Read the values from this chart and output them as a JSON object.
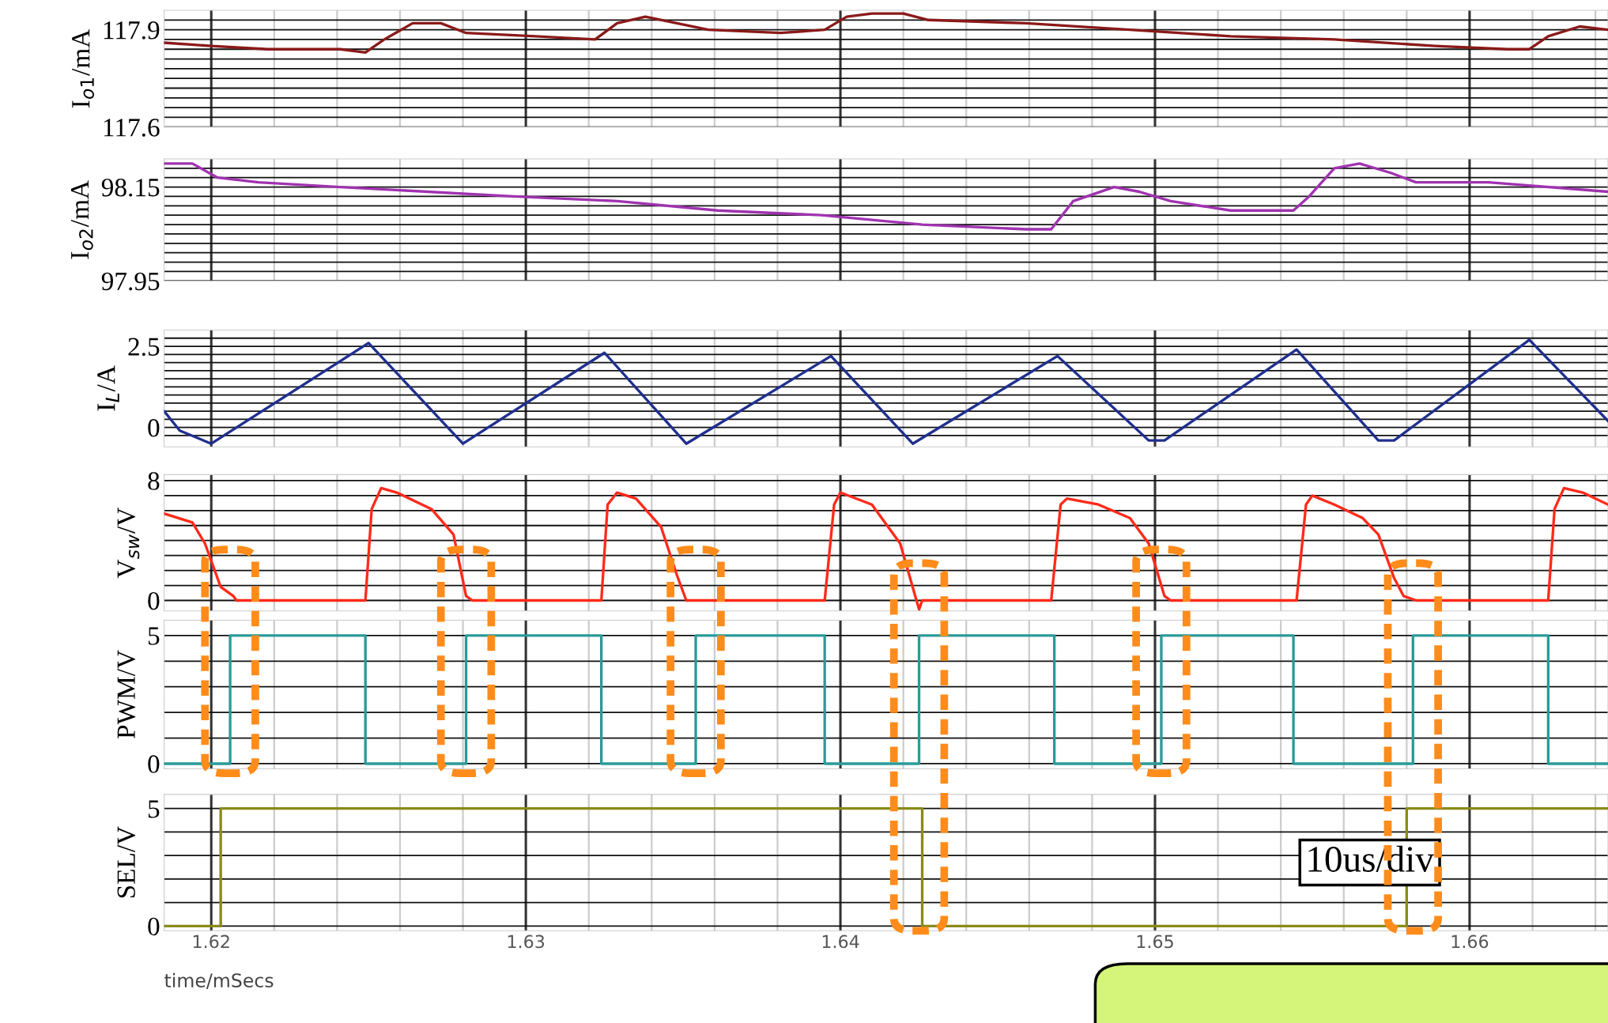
{
  "chart_data": [
    {
      "type": "line",
      "ylabel": "I$_{o1}$/mA",
      "ylim": [
        117.6,
        117.96
      ],
      "yticks": [
        117.6,
        {
          "value": 117.63,
          "label": null
        },
        {
          "value": 117.66,
          "label": null
        },
        {
          "value": 117.69,
          "label": null
        },
        {
          "value": 117.72,
          "label": null
        },
        {
          "value": 117.75,
          "label": null
        },
        {
          "value": 117.78,
          "label": null
        },
        {
          "value": 117.81,
          "label": null
        },
        {
          "value": 117.84,
          "label": null
        },
        {
          "value": 117.87,
          "label": null
        },
        117.9,
        {
          "value": 117.93,
          "label": null
        }
      ],
      "xlim": [
        1.6185,
        1.6644
      ],
      "tick_labels": "y",
      "grid": true,
      "series": [
        {
          "color": "#8b1a1a",
          "x": [
            1.6185,
            1.62,
            1.6218,
            1.6241,
            1.6249,
            1.6255,
            1.6264,
            1.6273,
            1.6281,
            1.6303,
            1.6322,
            1.6329,
            1.6338,
            1.6348,
            1.6358,
            1.6381,
            1.6395,
            1.6402,
            1.641,
            1.642,
            1.6428,
            1.6459,
            1.6492,
            1.6524,
            1.6557,
            1.6589,
            1.6612,
            1.6619,
            1.6625,
            1.6635,
            1.6644
          ],
          "values": [
            117.86,
            117.85,
            117.84,
            117.84,
            117.83,
            117.87,
            117.92,
            117.92,
            117.89,
            117.88,
            117.87,
            117.92,
            117.94,
            117.92,
            117.9,
            117.89,
            117.9,
            117.94,
            117.95,
            117.95,
            117.93,
            117.92,
            117.9,
            117.88,
            117.87,
            117.85,
            117.84,
            117.84,
            117.88,
            117.91,
            117.9
          ]
        }
      ]
    },
    {
      "type": "line",
      "ylabel": "I$_{o2}$/mA",
      "ylim": [
        97.95,
        98.21
      ],
      "yticks": [
        97.95,
        {
          "value": 97.97,
          "label": null
        },
        {
          "value": 97.99,
          "label": null
        },
        {
          "value": 98.01,
          "label": null
        },
        {
          "value": 98.03,
          "label": null
        },
        {
          "value": 98.05,
          "label": null
        },
        {
          "value": 98.07,
          "label": null
        },
        {
          "value": 98.09,
          "label": null
        },
        {
          "value": 98.11,
          "label": null
        },
        {
          "value": 98.13,
          "label": null
        },
        98.15,
        {
          "value": 98.17,
          "label": null
        },
        {
          "value": 98.19,
          "label": null
        }
      ],
      "xlim": [
        1.6185,
        1.6644
      ],
      "tick_labels": "y",
      "grid": true,
      "series": [
        {
          "color": "#a033b0",
          "x": [
            1.6185,
            1.6194,
            1.6202,
            1.6215,
            1.6241,
            1.6296,
            1.6329,
            1.6361,
            1.6394,
            1.6426,
            1.6459,
            1.6467,
            1.6474,
            1.6487,
            1.6495,
            1.6505,
            1.6524,
            1.6544,
            1.6549,
            1.6557,
            1.6565,
            1.6575,
            1.6583,
            1.6606,
            1.6644
          ],
          "values": [
            98.2,
            98.2,
            98.17,
            98.16,
            98.15,
            98.13,
            98.12,
            98.1,
            98.09,
            98.07,
            98.06,
            98.06,
            98.12,
            98.15,
            98.14,
            98.12,
            98.1,
            98.1,
            98.13,
            98.19,
            98.2,
            98.18,
            98.16,
            98.16,
            98.14
          ]
        }
      ]
    },
    {
      "type": "line",
      "ylabel": "I$_{L}$/A",
      "ylim": [
        -0.6,
        3.0
      ],
      "yticks": [
        {
          "value": -0.25,
          "label": null
        },
        0,
        {
          "value": 0.25,
          "label": null
        },
        {
          "value": 0.5,
          "label": null
        },
        {
          "value": 0.75,
          "label": null
        },
        {
          "value": 1,
          "label": null
        },
        {
          "value": 1.25,
          "label": null
        },
        {
          "value": 1.5,
          "label": null
        },
        {
          "value": 1.75,
          "label": null
        },
        {
          "value": 2,
          "label": null
        },
        {
          "value": 2.25,
          "label": null
        },
        2.5,
        {
          "value": 2.75,
          "label": null
        }
      ],
      "xlim": [
        1.6185,
        1.6644
      ],
      "tick_labels": "y",
      "grid": true,
      "series": [
        {
          "color": "#1f2f8f",
          "x": [
            1.6185,
            1.619,
            1.62,
            1.625,
            1.628,
            1.6325,
            1.6351,
            1.6397,
            1.6423,
            1.6469,
            1.6498,
            1.6503,
            1.6545,
            1.6571,
            1.6576,
            1.6619,
            1.6644
          ],
          "values": [
            0.5,
            -0.1,
            -0.5,
            2.6,
            -0.5,
            2.3,
            -0.5,
            2.2,
            -0.5,
            2.2,
            -0.4,
            -0.4,
            2.4,
            -0.4,
            -0.4,
            2.7,
            0.2
          ]
        }
      ]
    },
    {
      "type": "line",
      "ylabel": "V$_{sw}$/V",
      "ylim": [
        -0.7,
        8.4
      ],
      "yticks": [
        0,
        {
          "value": 1,
          "label": null
        },
        {
          "value": 2,
          "label": null
        },
        {
          "value": 3,
          "label": null
        },
        {
          "value": 4,
          "label": null
        },
        {
          "value": 5,
          "label": null
        },
        {
          "value": 6,
          "label": null
        },
        {
          "value": 7,
          "label": null
        },
        8
      ],
      "xlim": [
        1.6185,
        1.6644
      ],
      "tick_labels": "y",
      "grid": true,
      "series": [
        {
          "color": "#ff2a1a",
          "x": [
            1.6185,
            1.6194,
            1.6198,
            1.6203,
            1.6207,
            1.6208,
            1.6249,
            1.6251,
            1.6254,
            1.6259,
            1.627,
            1.6277,
            1.6281,
            1.6283,
            1.6324,
            1.6326,
            1.6329,
            1.6335,
            1.6343,
            1.6348,
            1.6351,
            1.6395,
            1.6398,
            1.64,
            1.641,
            1.6419,
            1.6425,
            1.6426,
            1.6467,
            1.647,
            1.6472,
            1.6482,
            1.6492,
            1.6498,
            1.6503,
            1.6505,
            1.6545,
            1.6548,
            1.655,
            1.6557,
            1.6566,
            1.6571,
            1.6576,
            1.6579,
            1.6583,
            1.6625,
            1.6627,
            1.663,
            1.6636,
            1.6644
          ],
          "values": [
            5.8,
            5.2,
            3.8,
            0.9,
            0.3,
            0,
            0,
            6.1,
            7.5,
            7.2,
            6.1,
            4.4,
            0.3,
            0,
            0,
            6.4,
            7.2,
            6.8,
            4.9,
            1.7,
            0,
            0,
            6.4,
            7.2,
            6.4,
            3.8,
            -0.6,
            0,
            0,
            6.4,
            6.8,
            6.4,
            5.5,
            3.8,
            0.3,
            0,
            0,
            6.4,
            7.0,
            6.4,
            5.5,
            4.4,
            1.5,
            0.3,
            0,
            0,
            6.1,
            7.5,
            7.2,
            6.4
          ]
        }
      ]
    },
    {
      "type": "step",
      "ylabel": "PWM/V",
      "ylim": [
        -0.2,
        5.6
      ],
      "yticks": [
        0,
        {
          "value": 1,
          "label": null
        },
        {
          "value": 2,
          "label": null
        },
        {
          "value": 3,
          "label": null
        },
        {
          "value": 4,
          "label": null
        },
        5
      ],
      "xlim": [
        1.6185,
        1.6644
      ],
      "tick_labels": "y",
      "grid": true,
      "series": [
        {
          "color": "#2a9a9a",
          "x": [
            1.6185,
            1.6206,
            1.6249,
            1.6281,
            1.6324,
            1.6354,
            1.6395,
            1.6425,
            1.6468,
            1.6502,
            1.6544,
            1.6582,
            1.6625,
            1.6644
          ],
          "values": [
            0,
            5,
            0,
            5,
            0,
            5,
            0,
            5,
            0,
            5,
            0,
            5,
            0,
            0
          ]
        }
      ]
    },
    {
      "type": "step",
      "ylabel": "SEL/V",
      "xlabel": "time/mSecs",
      "annotations": [
        "10us/div"
      ],
      "ylim": [
        -0.2,
        5.6
      ],
      "yticks": [
        0,
        {
          "value": 1,
          "label": null
        },
        {
          "value": 2,
          "label": null
        },
        {
          "value": 3,
          "label": null
        },
        {
          "value": 4,
          "label": null
        },
        5
      ],
      "xlim": [
        1.6185,
        1.6644
      ],
      "xticks": [
        {
          "value": 1.62,
          "label": "1.62"
        },
        {
          "value": 1.622,
          "label": null
        },
        {
          "value": 1.624,
          "label": null
        },
        {
          "value": 1.626,
          "label": null
        },
        {
          "value": 1.628,
          "label": null
        },
        {
          "value": 1.63,
          "label": "1.63"
        },
        {
          "value": 1.632,
          "label": null
        },
        {
          "value": 1.634,
          "label": null
        },
        {
          "value": 1.636,
          "label": null
        },
        {
          "value": 1.638,
          "label": null
        },
        {
          "value": 1.64,
          "label": "1.64"
        },
        {
          "value": 1.642,
          "label": null
        },
        {
          "value": 1.644,
          "label": null
        },
        {
          "value": 1.646,
          "label": null
        },
        {
          "value": 1.648,
          "label": null
        },
        {
          "value": 1.65,
          "label": "1.65"
        },
        {
          "value": 1.652,
          "label": null
        },
        {
          "value": 1.654,
          "label": null
        },
        {
          "value": 1.656,
          "label": null
        },
        {
          "value": 1.658,
          "label": null
        },
        {
          "value": 1.66,
          "label": "1.66"
        },
        {
          "value": 1.662,
          "label": null
        },
        {
          "value": 1.664,
          "label": null
        }
      ],
      "grid": true,
      "series": [
        {
          "color": "#8a8a1a",
          "x": [
            1.6185,
            1.6203,
            1.6426,
            1.658,
            1.6644
          ],
          "values": [
            0,
            5,
            0,
            5,
            5
          ]
        }
      ]
    }
  ]
}
